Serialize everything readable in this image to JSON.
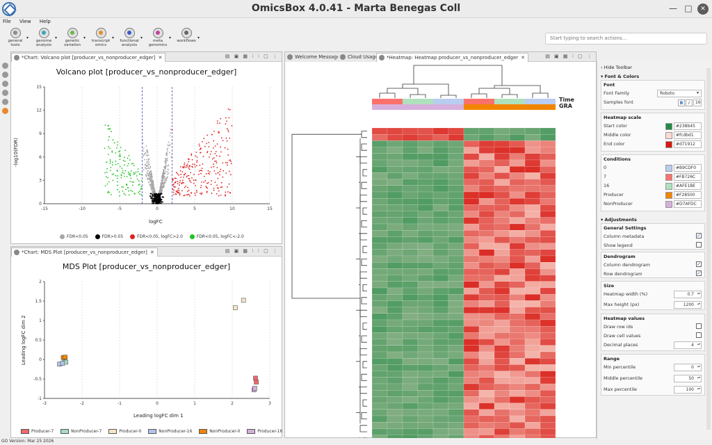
{
  "app": {
    "title": "OmicsBox 4.0.41 - Marta Benegas Coll",
    "status": "GO Version: Mar 25 2026"
  },
  "menu": [
    "File",
    "View",
    "Help"
  ],
  "toolbar": [
    {
      "l1": "general",
      "l2": "tools",
      "color": "#8a8a8a"
    },
    {
      "l1": "genome",
      "l2": "analysis",
      "color": "#3aa9b6"
    },
    {
      "l1": "genetic",
      "l2": "variation",
      "color": "#6bb84a"
    },
    {
      "l1": "transcript",
      "l2": "omics",
      "color": "#e88a2c"
    },
    {
      "l1": "functional",
      "l2": "analysis",
      "color": "#3a5ec8"
    },
    {
      "l1": "meta",
      "l2": "genomics",
      "color": "#c0449a"
    },
    {
      "l1": "",
      "l2": "workflows",
      "color": "#666"
    }
  ],
  "search": {
    "placeholder": "Start typing to search actions..."
  },
  "volcano": {
    "tab": "*Chart: Volcano plot [producer_vs_nonproducer_edger]",
    "title": "Volcano plot [producer_vs_nonproducer_edger]",
    "xlabel": "logFC",
    "ylabel": "-log10(FDR)",
    "legend": [
      "FDR<0.05",
      "FDR>0.05",
      "FDR<0.05, logFC>2.0",
      "FDR<0.05, logFC<-2.0"
    ]
  },
  "mds": {
    "tab": "*Chart: MDS Plot [producer_vs_nonproducer_edger]",
    "title": "MDS Plot [producer_vs_nonproducer_edger]",
    "xlabel": "Leading logFC dim 1",
    "ylabel": "Leading logFC dim 2",
    "legend": [
      "Producer-7",
      "NonProducer-7",
      "Producer-0",
      "NonProducer-16",
      "NonProducer-0",
      "Producer-16"
    ]
  },
  "tabs": [
    "Welcome Message",
    "Cloud Usage",
    "*Heatmap: Heatmap producer_vs_nonproducer_edger"
  ],
  "heatmap": {
    "labels": [
      "Time",
      "GRA"
    ]
  },
  "settings": {
    "hide": "Hide Toolbar",
    "font_colors": "Font & Colors",
    "font": "Font",
    "font_family_label": "Font Family",
    "font_family": "Roboto",
    "samples_font": "Samples font",
    "font_size": "16",
    "bold": "B",
    "italic": "I",
    "scale": "Heatmap scale",
    "start": "Start color",
    "start_val": "#238b45",
    "middle": "Middle color",
    "middle_val": "#fcdbd1",
    "end": "End color",
    "end_val": "#d71912",
    "conditions": "Conditions",
    "cond": [
      {
        "label": "0",
        "val": "#B9CDF0"
      },
      {
        "label": "7",
        "val": "#FB726C"
      },
      {
        "label": "16",
        "val": "#AFE1BE"
      },
      {
        "label": "Producer",
        "val": "#F28500"
      },
      {
        "label": "NonProducer",
        "val": "#D7AFDC"
      }
    ],
    "adjustments": "Adjustments",
    "general": "General Settings",
    "col_meta": "Column metadata",
    "show_legend": "Show legend",
    "dendro": "Dendrogram",
    "col_dendro": "Column dendrogram",
    "row_dendro": "Row dendrogram",
    "size": "Size",
    "hm_width": "Heatmap width (%)",
    "hm_width_val": "0.7",
    "max_height": "Max height (px)",
    "max_height_val": "1200",
    "hm_values": "Heatmap values",
    "draw_row": "Draw row ids",
    "draw_cell": "Draw cell values",
    "decimal": "Decimal places",
    "decimal_val": "4",
    "range": "Range",
    "min_pct": "Min percentile",
    "min_pct_val": "0",
    "mid_pct": "Middle percentile",
    "mid_pct_val": "50",
    "max_pct": "Max percentile",
    "max_pct_val": "100"
  },
  "chart_data": [
    {
      "type": "scatter",
      "title": "Volcano plot [producer_vs_nonproducer_edger]",
      "xlabel": "logFC",
      "ylabel": "-log10(FDR)",
      "xlim": [
        -15,
        15
      ],
      "ylim": [
        0,
        15
      ],
      "xticks": [
        "-15",
        "-10",
        "-5",
        "0",
        "5",
        "10",
        "15"
      ],
      "yticks": [
        "0",
        "3",
        "6",
        "9",
        "12",
        "15"
      ],
      "thresholds": [
        -2,
        2
      ],
      "series": [
        {
          "name": "FDR<0.05",
          "color": "#a6a6a6"
        },
        {
          "name": "FDR>0.05",
          "color": "#000000"
        },
        {
          "name": "FDR<0.05, logFC>2.0",
          "color": "#e0201e"
        },
        {
          "name": "FDR<0.05, logFC<-2.0",
          "color": "#1fc21f"
        }
      ]
    },
    {
      "type": "scatter",
      "title": "MDS Plot [producer_vs_nonproducer_edger]",
      "xlabel": "Leading logFC dim 1",
      "ylabel": "Leading logFC dim 2",
      "xlim": [
        -3,
        3
      ],
      "ylim": [
        -1,
        2
      ],
      "xticks": [
        "-3",
        "-2",
        "-1",
        "0",
        "1",
        "2",
        "3"
      ],
      "yticks": [
        "-1",
        "-0.5",
        "0",
        "0.5",
        "1",
        "1.5",
        "2"
      ],
      "series": [
        {
          "name": "Producer-7",
          "color": "#f0686a",
          "points": [
            [
              2.62,
              -0.48
            ],
            [
              2.64,
              -0.58
            ]
          ]
        },
        {
          "name": "NonProducer-7",
          "color": "#a8dcc0",
          "points": [
            [
              -2.47,
              -0.02
            ],
            [
              -2.43,
              -0.07
            ]
          ]
        },
        {
          "name": "Producer-0",
          "color": "#f6e6c8",
          "points": [
            [
              2.08,
              1.33
            ],
            [
              2.3,
              1.52
            ]
          ]
        },
        {
          "name": "NonProducer-16",
          "color": "#b3c4ec",
          "points": [
            [
              -2.6,
              -0.12
            ],
            [
              -2.52,
              -0.1
            ]
          ]
        },
        {
          "name": "NonProducer-0",
          "color": "#f28500",
          "points": [
            [
              -2.5,
              0.05
            ],
            [
              -2.45,
              0.06
            ]
          ]
        },
        {
          "name": "Producer-16",
          "color": "#d6b0dc",
          "points": [
            [
              2.58,
              -0.78
            ],
            [
              2.6,
              -0.74
            ]
          ]
        }
      ]
    }
  ]
}
